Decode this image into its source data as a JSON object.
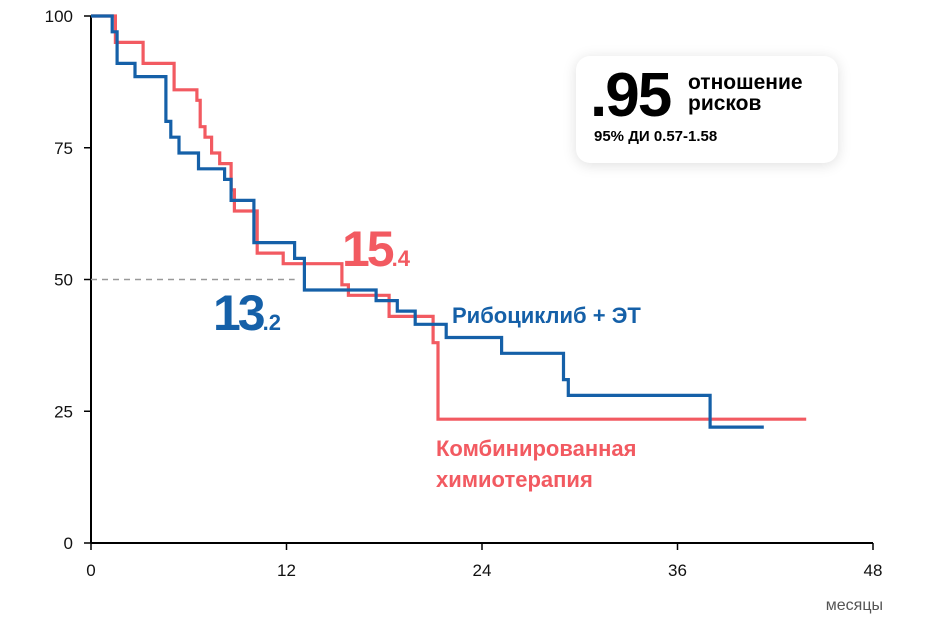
{
  "chart_data": {
    "type": "line",
    "subtype": "kaplan-meier step",
    "xlabel": "месяцы",
    "ylabel": "",
    "xlim": [
      0,
      48
    ],
    "ylim": [
      0,
      100
    ],
    "x_ticks": [
      "0",
      "12",
      "24",
      "36",
      "48"
    ],
    "y_ticks": [
      "0",
      "25",
      "50",
      "75",
      "100"
    ],
    "reference_line": {
      "y": 50,
      "style": "dashed",
      "color": "#999999"
    },
    "series": [
      {
        "name": "Рибоциклиб + ЭТ",
        "color": "#1560A8",
        "median": {
          "whole": "13",
          "decimal": ".2"
        },
        "points": [
          [
            0,
            100
          ],
          [
            1.3,
            100
          ],
          [
            1.3,
            97
          ],
          [
            1.6,
            97
          ],
          [
            1.6,
            91
          ],
          [
            2.7,
            91
          ],
          [
            2.7,
            88.5
          ],
          [
            4.6,
            88.5
          ],
          [
            4.6,
            80
          ],
          [
            4.9,
            80
          ],
          [
            4.9,
            77
          ],
          [
            5.4,
            77
          ],
          [
            5.4,
            74
          ],
          [
            6.6,
            74
          ],
          [
            6.6,
            71
          ],
          [
            8.2,
            71
          ],
          [
            8.2,
            69
          ],
          [
            8.6,
            69
          ],
          [
            8.6,
            65
          ],
          [
            10,
            65
          ],
          [
            10,
            57
          ],
          [
            12.5,
            57
          ],
          [
            12.5,
            54
          ],
          [
            13.1,
            54
          ],
          [
            13.1,
            48
          ],
          [
            17.5,
            48
          ],
          [
            17.5,
            46
          ],
          [
            18.8,
            46
          ],
          [
            18.8,
            44
          ],
          [
            19.9,
            44
          ],
          [
            19.9,
            41.5
          ],
          [
            21.8,
            41.5
          ],
          [
            21.8,
            39
          ],
          [
            25.2,
            39
          ],
          [
            25.2,
            36
          ],
          [
            29,
            36
          ],
          [
            29,
            31
          ],
          [
            29.3,
            31
          ],
          [
            29.3,
            28
          ],
          [
            38,
            28
          ],
          [
            38,
            22
          ],
          [
            41.3,
            22
          ]
        ]
      },
      {
        "name": "Комбинированная химиотерапия",
        "color": "#F25A61",
        "median": {
          "whole": "15",
          "decimal": ".4"
        },
        "points": [
          [
            0,
            100
          ],
          [
            1.5,
            100
          ],
          [
            1.5,
            95
          ],
          [
            3.2,
            95
          ],
          [
            3.2,
            91
          ],
          [
            5.1,
            91
          ],
          [
            5.1,
            86
          ],
          [
            6.5,
            86
          ],
          [
            6.5,
            84
          ],
          [
            6.7,
            84
          ],
          [
            6.7,
            79
          ],
          [
            7,
            79
          ],
          [
            7,
            77
          ],
          [
            7.4,
            77
          ],
          [
            7.4,
            74
          ],
          [
            7.9,
            74
          ],
          [
            7.9,
            72
          ],
          [
            8.6,
            72
          ],
          [
            8.6,
            67
          ],
          [
            8.8,
            67
          ],
          [
            8.8,
            63
          ],
          [
            10.2,
            63
          ],
          [
            10.2,
            55
          ],
          [
            11.8,
            55
          ],
          [
            11.8,
            53
          ],
          [
            15.4,
            53
          ],
          [
            15.4,
            49
          ],
          [
            15.8,
            49
          ],
          [
            15.8,
            47
          ],
          [
            18.3,
            47
          ],
          [
            18.3,
            43
          ],
          [
            21,
            43
          ],
          [
            21,
            38
          ],
          [
            21.3,
            38
          ],
          [
            21.3,
            23.5
          ],
          [
            43.9,
            23.5
          ]
        ]
      }
    ],
    "hazard_ratio": {
      "value": ".95",
      "label": "отношение рисков",
      "ci": "95% ДИ 0.57-1.58"
    }
  }
}
